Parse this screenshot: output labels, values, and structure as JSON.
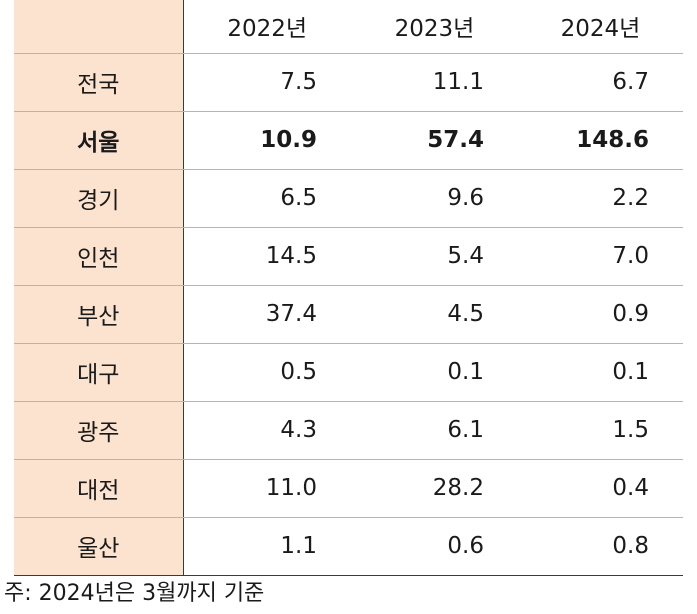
{
  "table": {
    "headers": [
      "",
      "2022년",
      "2023년",
      "2024년"
    ],
    "rows": [
      {
        "label": "전국",
        "values": [
          "7.5",
          "11.1",
          "6.7"
        ],
        "bold": false
      },
      {
        "label": "서울",
        "values": [
          "10.9",
          "57.4",
          "148.6"
        ],
        "bold": true
      },
      {
        "label": "경기",
        "values": [
          "6.5",
          "9.6",
          "2.2"
        ],
        "bold": false
      },
      {
        "label": "인천",
        "values": [
          "14.5",
          "5.4",
          "7.0"
        ],
        "bold": false
      },
      {
        "label": "부산",
        "values": [
          "37.4",
          "4.5",
          "0.9"
        ],
        "bold": false
      },
      {
        "label": "대구",
        "values": [
          "0.5",
          "0.1",
          "0.1"
        ],
        "bold": false
      },
      {
        "label": "광주",
        "values": [
          "4.3",
          "6.1",
          "1.5"
        ],
        "bold": false
      },
      {
        "label": "대전",
        "values": [
          "11.0",
          "28.2",
          "0.4"
        ],
        "bold": false
      },
      {
        "label": "울산",
        "values": [
          "1.1",
          "0.6",
          "0.8"
        ],
        "bold": false
      }
    ]
  },
  "note": "주: 2024년은 3월까지 기준",
  "colors": {
    "label_background": "#fbe3d0",
    "grid_line": "#b5b5b5"
  }
}
